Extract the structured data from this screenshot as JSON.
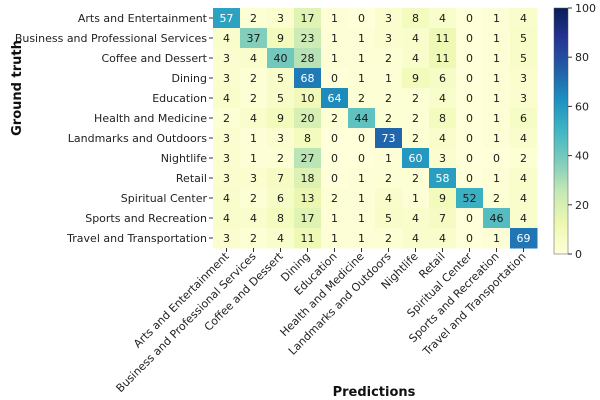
{
  "chart_data": {
    "type": "heatmap",
    "xlabel": "Predictions",
    "ylabel": "Ground truth",
    "categories": [
      "Arts and Entertainment",
      "Business and Professional Services",
      "Coffee and Dessert",
      "Dining",
      "Education",
      "Health and Medicine",
      "Landmarks and Outdoors",
      "Nightlife",
      "Retail",
      "Spiritual Center",
      "Sports and Recreation",
      "Travel and Transportation"
    ],
    "matrix": [
      [
        57,
        2,
        3,
        17,
        1,
        0,
        3,
        8,
        4,
        0,
        1,
        4
      ],
      [
        4,
        37,
        9,
        23,
        1,
        1,
        3,
        4,
        11,
        0,
        1,
        5
      ],
      [
        3,
        4,
        40,
        28,
        1,
        1,
        2,
        4,
        11,
        0,
        1,
        5
      ],
      [
        3,
        2,
        5,
        68,
        0,
        1,
        1,
        9,
        6,
        0,
        1,
        3
      ],
      [
        4,
        2,
        5,
        10,
        64,
        2,
        2,
        2,
        4,
        0,
        1,
        3
      ],
      [
        2,
        4,
        9,
        20,
        2,
        44,
        2,
        2,
        8,
        0,
        1,
        6
      ],
      [
        3,
        1,
        3,
        8,
        0,
        0,
        73,
        2,
        4,
        0,
        1,
        4
      ],
      [
        3,
        1,
        2,
        27,
        0,
        0,
        1,
        60,
        3,
        0,
        0,
        2
      ],
      [
        3,
        3,
        7,
        18,
        0,
        1,
        2,
        2,
        58,
        0,
        1,
        4
      ],
      [
        4,
        2,
        6,
        13,
        2,
        1,
        4,
        1,
        9,
        52,
        2,
        4
      ],
      [
        4,
        4,
        8,
        17,
        1,
        1,
        5,
        4,
        7,
        0,
        46,
        4
      ],
      [
        3,
        2,
        4,
        11,
        1,
        1,
        2,
        4,
        4,
        0,
        1,
        69
      ]
    ],
    "colorbar": {
      "min": 0,
      "max": 100,
      "ticks": [
        0,
        20,
        40,
        60,
        80,
        100
      ],
      "colormap": "YlGnBu"
    }
  }
}
